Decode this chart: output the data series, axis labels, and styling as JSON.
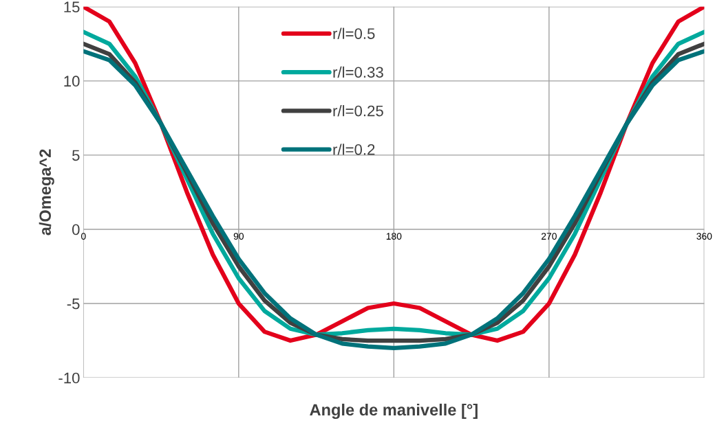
{
  "chart_data": {
    "type": "line",
    "xlabel": "Angle de manivelle [°]",
    "ylabel": "a/Omega^2",
    "x": [
      0,
      15,
      30,
      45,
      60,
      75,
      90,
      105,
      120,
      135,
      150,
      165,
      180,
      195,
      210,
      225,
      240,
      255,
      270,
      285,
      300,
      315,
      330,
      345,
      360
    ],
    "series": [
      {
        "name": "r/l=0.5",
        "color": "#e3001b",
        "values": [
          15,
          14.0,
          11.2,
          7.1,
          2.5,
          -1.7,
          -5,
          -6.9,
          -7.5,
          -7.1,
          -6.2,
          -5.3,
          -5,
          -5.3,
          -6.2,
          -7.1,
          -7.5,
          -6.9,
          -5,
          -1.7,
          2.5,
          7.1,
          11.2,
          14.0,
          15
        ]
      },
      {
        "name": "r/l=0.33",
        "color": "#00a99d",
        "values": [
          13.3,
          12.5,
          10.3,
          7.1,
          3.4,
          -0.3,
          -3.3,
          -5.5,
          -6.7,
          -7.1,
          -7.0,
          -6.8,
          -6.7,
          -6.8,
          -7.0,
          -7.1,
          -6.7,
          -5.5,
          -3.3,
          -0.3,
          3.4,
          7.1,
          10.3,
          12.5,
          13.3
        ]
      },
      {
        "name": "r/l=0.25",
        "color": "#404040",
        "values": [
          12.5,
          11.8,
          9.9,
          7.1,
          3.8,
          0.4,
          -2.5,
          -4.8,
          -6.3,
          -7.1,
          -7.4,
          -7.5,
          -7.5,
          -7.5,
          -7.4,
          -7.1,
          -6.3,
          -4.8,
          -2.5,
          0.4,
          3.8,
          7.1,
          9.9,
          11.8,
          12.5
        ]
      },
      {
        "name": "r/l=0.2",
        "color": "#00727a",
        "values": [
          12,
          11.4,
          9.7,
          7.1,
          4,
          0.9,
          -2,
          -4.3,
          -6,
          -7.1,
          -7.7,
          -7.9,
          -8,
          -7.9,
          -7.7,
          -7.1,
          -6,
          -4.3,
          -2,
          0.9,
          4,
          7.1,
          9.7,
          11.4,
          12
        ]
      }
    ],
    "xlim": [
      0,
      360
    ],
    "xticks": [
      0,
      90,
      180,
      270,
      360
    ],
    "ylim": [
      -10,
      15
    ],
    "yticks": [
      -10,
      -5,
      0,
      5,
      10,
      15
    ],
    "grid": true,
    "legend": "top",
    "marker": "none",
    "line_style": "solid"
  }
}
